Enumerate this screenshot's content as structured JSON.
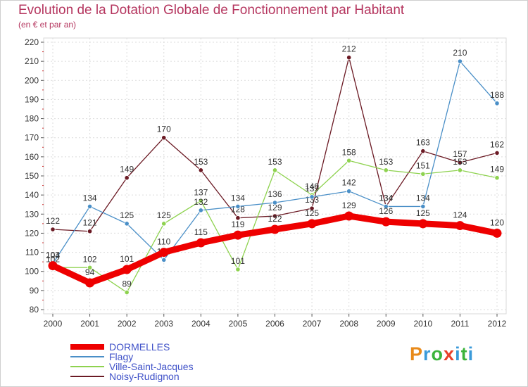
{
  "title": "Evolution de la Dotation Globale de Fonctionnement par Habitant",
  "subtitle": "(en € et par an)",
  "logo_text": "Proxiti",
  "chart_data": {
    "type": "line",
    "title": "Evolution de la Dotation Globale de Fonctionnement par Habitant",
    "subtitle": "(en € et par an)",
    "x": [
      "2000",
      "2001",
      "2002",
      "2003",
      "2004",
      "2005",
      "2006",
      "2007",
      "2008",
      "2009",
      "2010",
      "2011",
      "2012"
    ],
    "ylim": [
      80,
      220
    ],
    "yticks": [
      80,
      90,
      100,
      110,
      120,
      130,
      140,
      150,
      160,
      170,
      180,
      190,
      200,
      210,
      220
    ],
    "grid": true,
    "legend_position": "bottom-left",
    "series": [
      {
        "name": "DORMELLES",
        "color": "#ee0000",
        "values": [
          103,
          94,
          101,
          110,
          115,
          119,
          122,
          125,
          129,
          126,
          125,
          124,
          120
        ]
      },
      {
        "name": "Flagy",
        "color": "#4a8fc7",
        "values": [
          104,
          134,
          125,
          106,
          132,
          134,
          136,
          139,
          142,
          134,
          134,
          210,
          188
        ]
      },
      {
        "name": "Ville-Saint-Jacques",
        "color": "#8ed24f",
        "values": [
          102,
          102,
          89,
          125,
          137,
          101,
          153,
          140,
          158,
          153,
          151,
          153,
          149
        ]
      },
      {
        "name": "Noisy-Rudignon",
        "color": "#6b1a24",
        "values": [
          122,
          121,
          149,
          170,
          153,
          128,
          129,
          133,
          212,
          134,
          163,
          157,
          162
        ]
      }
    ]
  }
}
